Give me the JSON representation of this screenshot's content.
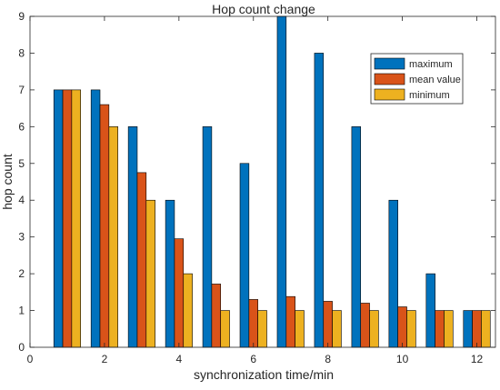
{
  "chart_data": {
    "type": "bar",
    "title": "Hop count change",
    "xlabel": "synchronization time/min",
    "ylabel": "hop count",
    "x": [
      1,
      2,
      3,
      4,
      5,
      6,
      7,
      8,
      9,
      10,
      11,
      12
    ],
    "xlim": [
      0,
      12.5
    ],
    "ylim": [
      0,
      9
    ],
    "xticks": [
      "0",
      "2",
      "4",
      "6",
      "8",
      "10",
      "12"
    ],
    "yticks": [
      "0",
      "1",
      "2",
      "3",
      "4",
      "5",
      "6",
      "7",
      "8",
      "9"
    ],
    "grid": false,
    "legend_position": "top-right",
    "series": [
      {
        "name": "maximum",
        "color": "#0072BD",
        "values": [
          7,
          7,
          6,
          4,
          6,
          5,
          9,
          8,
          6,
          4,
          2,
          1
        ]
      },
      {
        "name": "mean value",
        "color": "#D95319",
        "values": [
          7,
          6.6,
          4.75,
          2.95,
          1.72,
          1.3,
          1.38,
          1.25,
          1.2,
          1.1,
          1,
          1
        ]
      },
      {
        "name": "minimum",
        "color": "#EDB120",
        "values": [
          7,
          6,
          4,
          2,
          1,
          1,
          1,
          1,
          1,
          1,
          1,
          1
        ]
      }
    ]
  }
}
